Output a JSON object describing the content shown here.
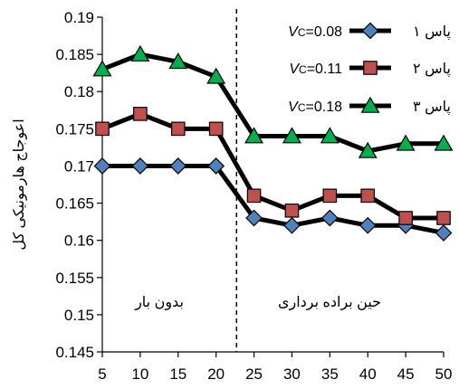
{
  "chart_data": {
    "type": "line",
    "title": "",
    "xlabel": "",
    "ylabel": "اعوجاج هارمونیکی کل",
    "x": [
      5,
      10,
      15,
      20,
      25,
      30,
      35,
      40,
      45,
      50
    ],
    "xlim": [
      5,
      50
    ],
    "ylim": [
      0.145,
      0.19
    ],
    "y_ticks": [
      "0.145",
      "0.15",
      "0.155",
      "0.16",
      "0.165",
      "0.17",
      "0.175",
      "0.18",
      "0.185",
      "0.19"
    ],
    "x_ticks": [
      "5",
      "10",
      "15",
      "20",
      "25",
      "30",
      "35",
      "40",
      "45",
      "50"
    ],
    "grid": false,
    "legend_position": "top-right",
    "series": [
      {
        "name": "پاس ۱",
        "vc_label": "V",
        "vc_sub": "C",
        "vc_value": "=0.08",
        "marker": "diamond",
        "marker_color": "#4f81bd",
        "values": [
          0.17,
          0.17,
          0.17,
          0.17,
          0.163,
          0.162,
          0.163,
          0.162,
          0.162,
          0.161
        ]
      },
      {
        "name": "پاس ۲",
        "vc_label": "V",
        "vc_sub": "C",
        "vc_value": "=0.11",
        "marker": "square",
        "marker_color": "#c0504d",
        "values": [
          0.175,
          0.177,
          0.175,
          0.175,
          0.166,
          0.164,
          0.166,
          0.166,
          0.163,
          0.163
        ]
      },
      {
        "name": "پاس ۳",
        "vc_label": "V",
        "vc_sub": "C",
        "vc_value": "=0.18",
        "marker": "triangle",
        "marker_color": "#00b050",
        "values": [
          0.183,
          0.185,
          0.184,
          0.182,
          0.174,
          0.174,
          0.174,
          0.172,
          0.173,
          0.173
        ]
      }
    ],
    "divider_x": 22.7,
    "annotations": {
      "left": "بدون بار",
      "right": "حین براده برداری"
    },
    "line_color": "#000000"
  }
}
